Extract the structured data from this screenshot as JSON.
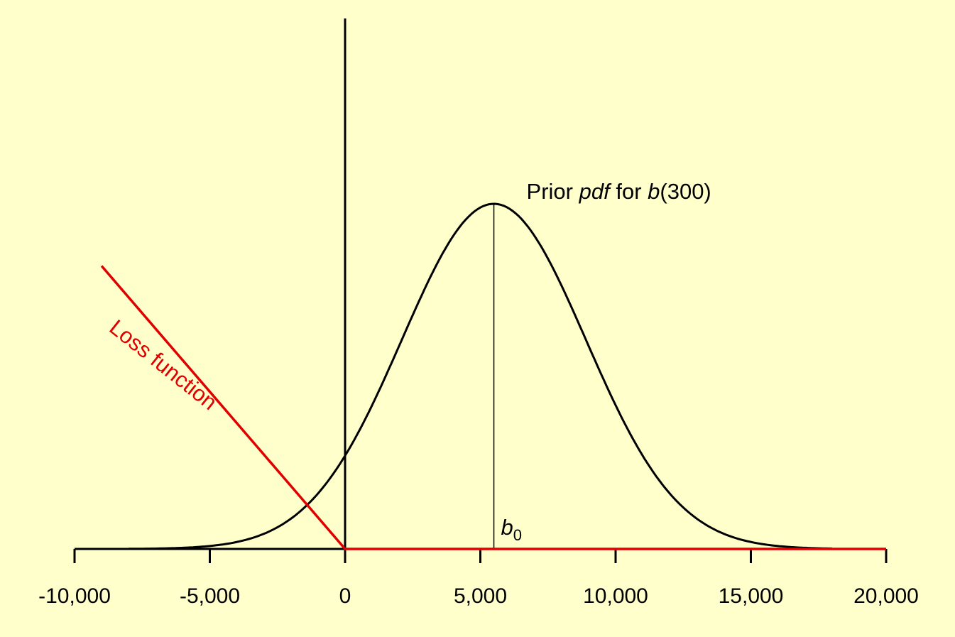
{
  "chart_data": {
    "type": "line",
    "colors": {
      "background": "#ffffcc",
      "axis": "#000000",
      "pdf_curve": "#000000",
      "loss": "#e00000"
    },
    "grid": false,
    "legend": "none",
    "xlim": [
      -10000,
      20000
    ],
    "x_ticks": [
      -10000,
      -5000,
      0,
      5000,
      10000,
      15000,
      20000
    ],
    "x_tick_labels": [
      "-10,000",
      "-5,000",
      "0",
      "5,000",
      "10,000",
      "15,000",
      "20,000"
    ],
    "prior_pdf": {
      "distribution": "normal",
      "mean": 5500,
      "sd": 3400,
      "support": [
        -8000,
        18000
      ],
      "label_parts": [
        "Prior ",
        "pdf",
        " for ",
        "b",
        "(300)"
      ]
    },
    "loss_function": {
      "points": [
        [
          -9000,
          0.82
        ],
        [
          0,
          0
        ],
        [
          20000,
          0
        ]
      ],
      "label": "Loss function"
    },
    "b0": {
      "x": 5500,
      "label_main": "b",
      "label_sub": "0"
    }
  }
}
